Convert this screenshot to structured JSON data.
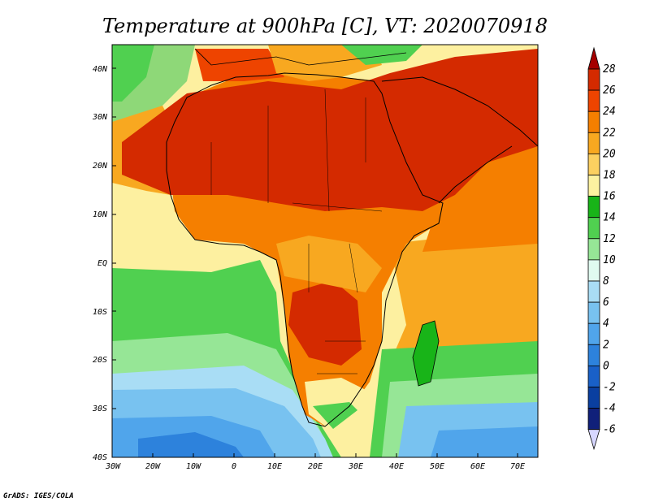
{
  "title": "Temperature at 900hPa [C], VT: 2020070918",
  "credit": "GrADS: IGES/COLA",
  "latitude_labels": [
    "40N",
    "30N",
    "20N",
    "10N",
    "EQ",
    "10S",
    "20S",
    "30S",
    "40S"
  ],
  "longitude_labels": [
    "30W",
    "20W",
    "10W",
    "0",
    "10E",
    "20E",
    "30E",
    "40E",
    "50E",
    "60E",
    "70E"
  ],
  "colorbar": {
    "levels": [
      "28",
      "26",
      "24",
      "22",
      "20",
      "18",
      "16",
      "14",
      "12",
      "10",
      "8",
      "6",
      "4",
      "2",
      "0",
      "-2",
      "-4",
      "-6"
    ],
    "colors": [
      "#a50000",
      "#d42a00",
      "#ee4400",
      "#f57f00",
      "#f8a820",
      "#fcd060",
      "#fdf2a0",
      "#18b418",
      "#50d050",
      "#96e696",
      "#e0fbf0",
      "#a9ddf5",
      "#78c2f0",
      "#50a5eb",
      "#2d82dc",
      "#1960c8",
      "#0a3fa0",
      "#10207a",
      "#d7d7ff"
    ]
  },
  "field_colors": {
    "ocean_north": "#8ed878",
    "atlantic_warm": "#fdf0a0",
    "atlantic_mid": "#50d050",
    "southern_ocean": "#50a5eb",
    "southern_deep": "#2d82dc",
    "indian_ocean": "#f8a820",
    "land_hot": "#d42a00",
    "land_warm": "#f57f00"
  }
}
